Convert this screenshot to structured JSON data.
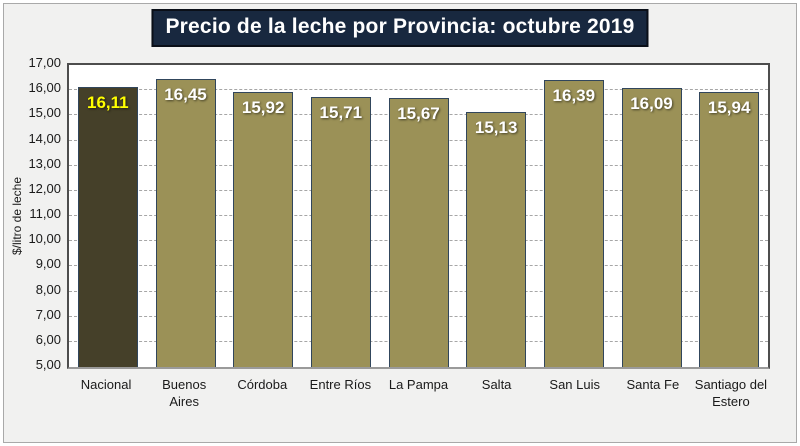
{
  "window": {
    "background": "#f1f1f0",
    "border_color": "#a9a9a9"
  },
  "title_banner": {
    "text": "Precio de la leche por Provincia: octubre 2019",
    "background": "#18283f",
    "border_color": "#0a0f18",
    "text_color": "#ffffff"
  },
  "chart_data": {
    "type": "bar",
    "title": "Precio de la leche por Provincia: octubre 2019",
    "xlabel": "",
    "ylabel": "$/litro de leche",
    "ylim": [
      5,
      17
    ],
    "ytick_step": 1,
    "ytick_labels": [
      "17,00",
      "16,00",
      "15,00",
      "14,00",
      "13,00",
      "12,00",
      "11,00",
      "10,00",
      "9,00",
      "8,00",
      "7,00",
      "6,00",
      "5,00"
    ],
    "grid": "horizontal-dashed",
    "legend": false,
    "categories": [
      "Nacional",
      "Buenos Aires",
      "Córdoba",
      "Entre Ríos",
      "La Pampa",
      "Salta",
      "San Luis",
      "Santa Fe",
      "Santiago del Estero"
    ],
    "values": [
      16.11,
      16.45,
      15.92,
      15.71,
      15.67,
      15.13,
      16.39,
      16.09,
      15.94
    ],
    "value_labels": [
      "16,11",
      "16,45",
      "15,92",
      "15,71",
      "15,67",
      "15,13",
      "16,39",
      "16,09",
      "15,94"
    ],
    "bar_color": "#9b9157",
    "bar_border_color": "#31465c",
    "value_label_color": "#ffffff",
    "highlight": {
      "index": 0,
      "color": "#454029",
      "label_color": "#ffff00"
    },
    "gridline_color": "#a6a6a6",
    "plot_background": "#ffffff"
  }
}
